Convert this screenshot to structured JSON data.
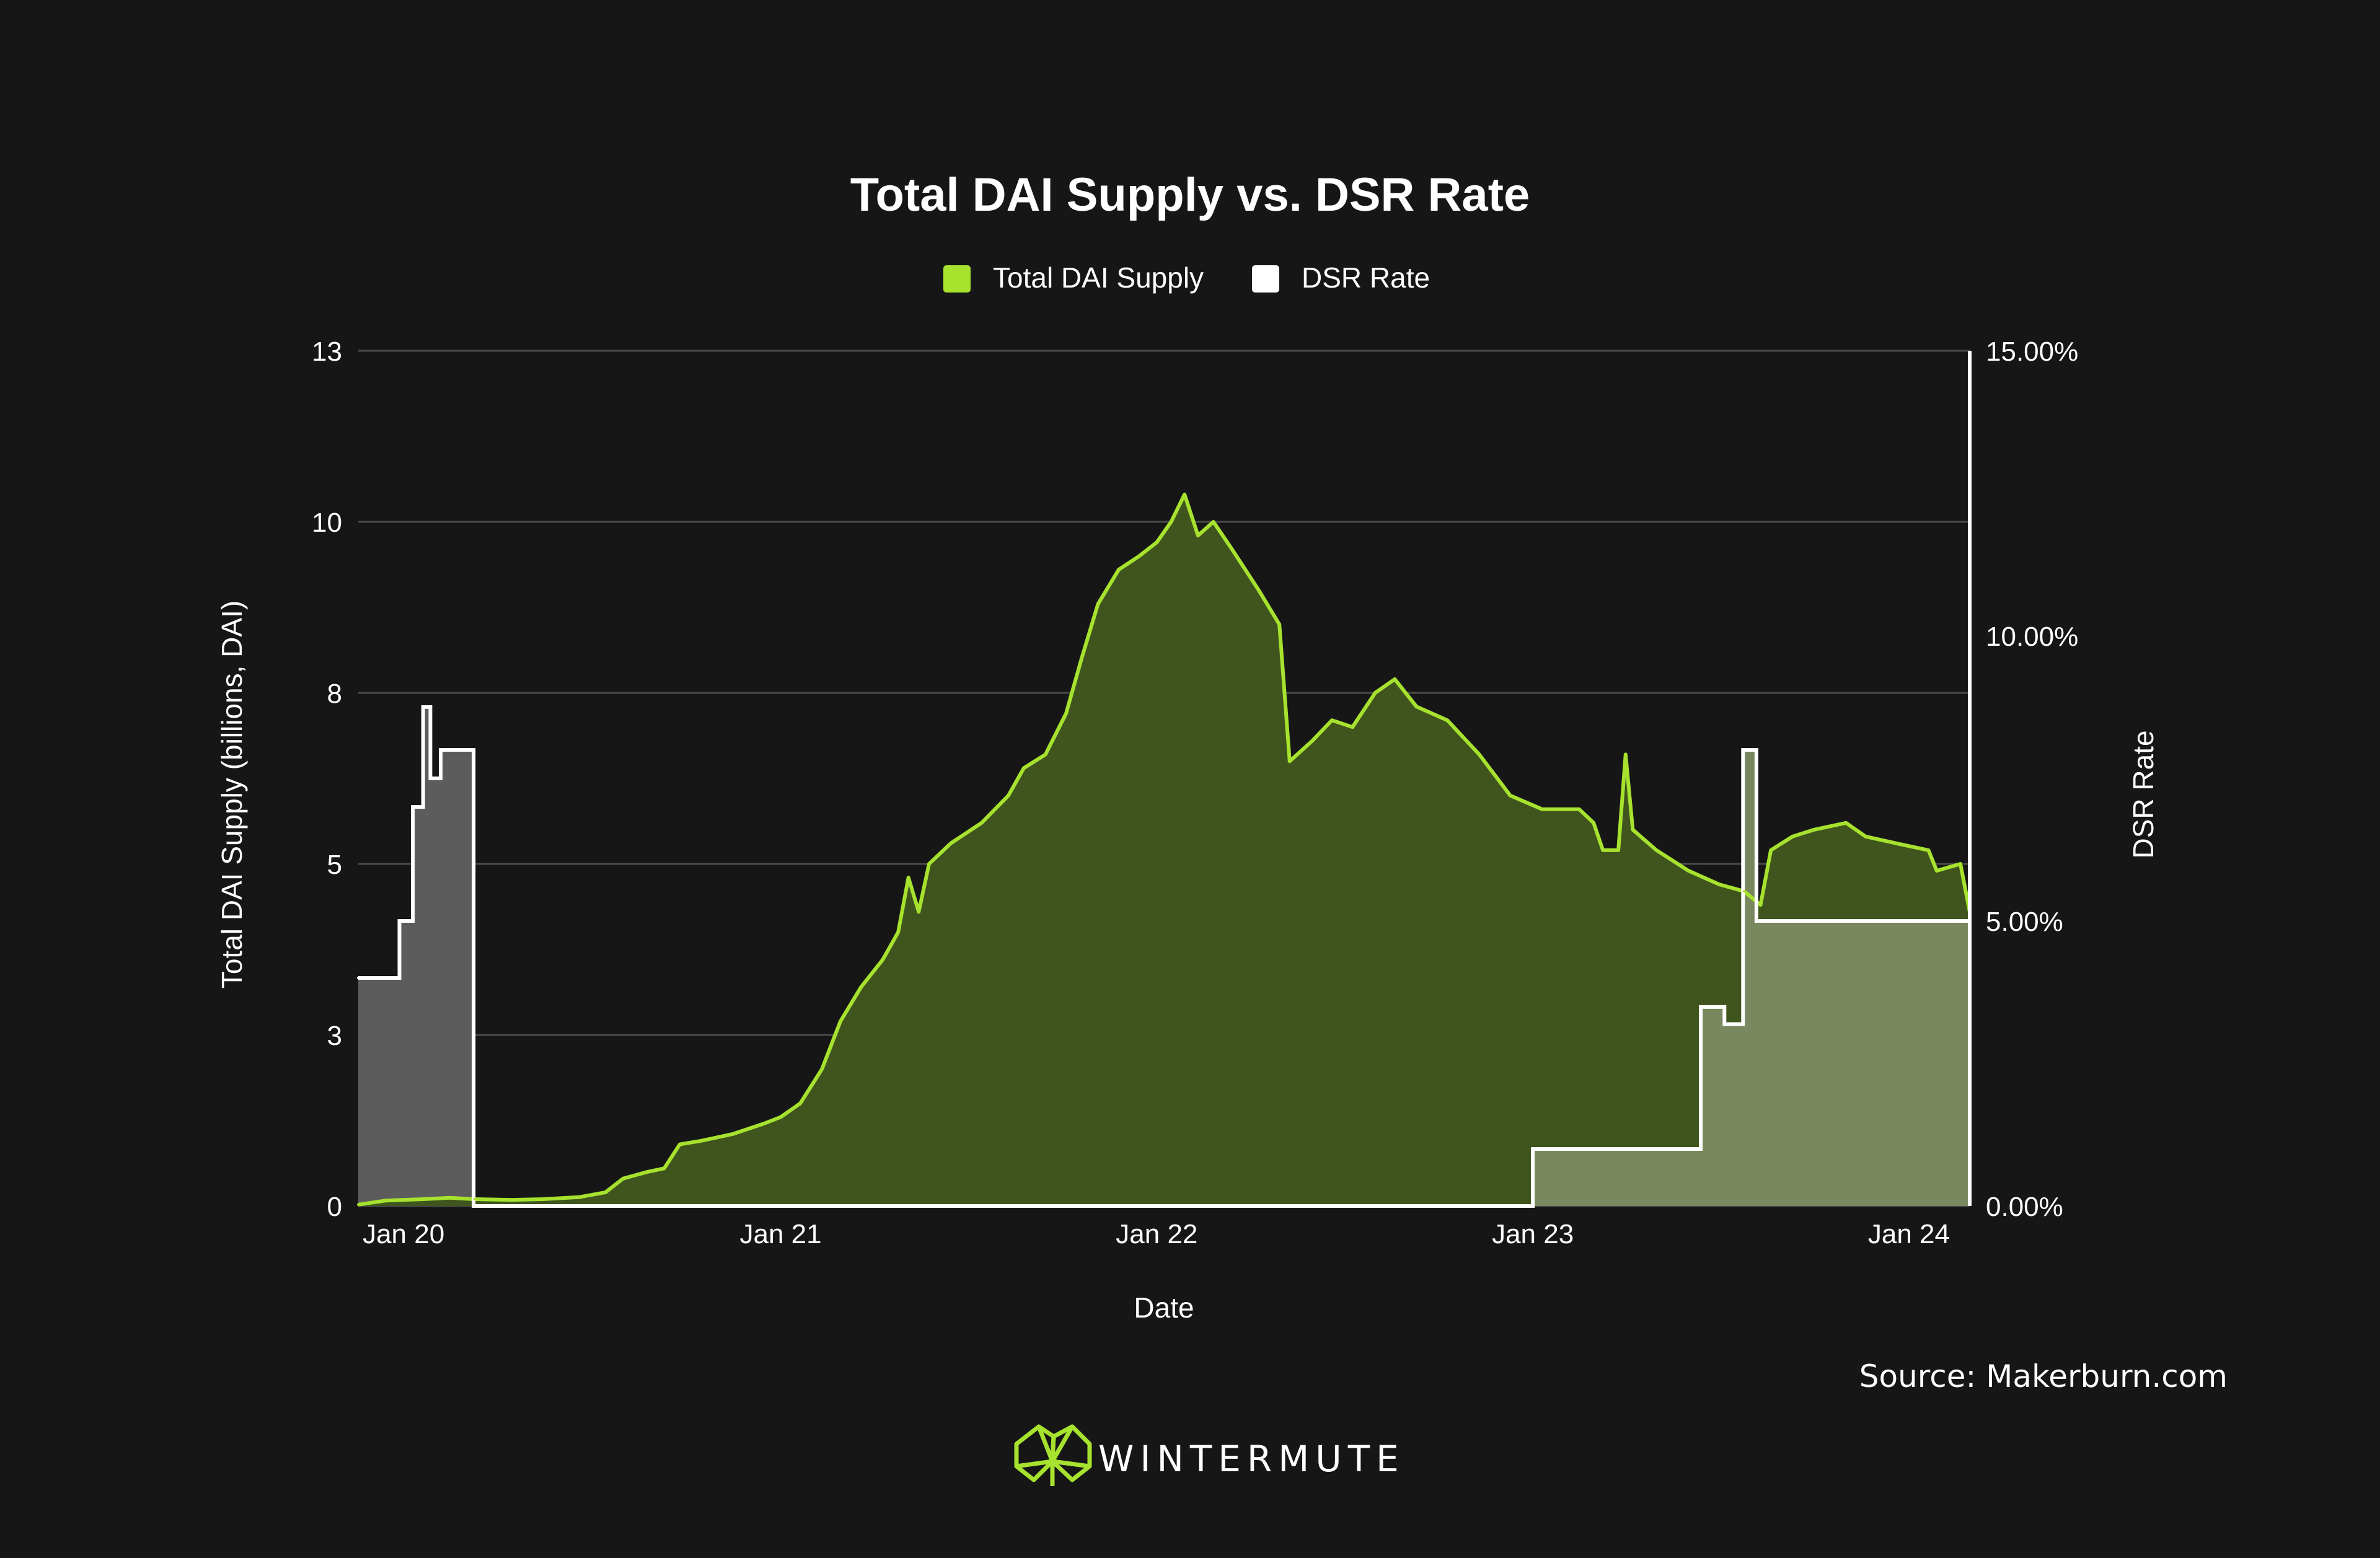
{
  "chart_data": {
    "type": "area",
    "title": "Total DAI Supply vs. DSR Rate",
    "xlabel": "Date",
    "ylabel": "Total DAI Supply (billions, DAI)",
    "y2label": "DSR Rate",
    "x_tick_labels": [
      "Jan 20",
      "Jan 21",
      "Jan 22",
      "Jan 23",
      "Jan 24"
    ],
    "y_tick_labels": [
      "0",
      "3",
      "5",
      "8",
      "10",
      "13"
    ],
    "y2_tick_labels": [
      "0.00%",
      "5.00%",
      "10.00%",
      "15.00%"
    ],
    "xlim": [
      "2019-11-18",
      "2024-02-29"
    ],
    "ylim": [
      0,
      12.5
    ],
    "y2lim": [
      0,
      15
    ],
    "grid": true,
    "legend_position": "top-center",
    "series": [
      {
        "name": "Total DAI Supply",
        "axis": "left",
        "unit": "billions",
        "color": "#a6e22e",
        "fill": "#3f551d",
        "points": [
          [
            "2019-11-18",
            0.02
          ],
          [
            "2019-12-15",
            0.08
          ],
          [
            "2020-01-20",
            0.1
          ],
          [
            "2020-02-15",
            0.12
          ],
          [
            "2020-03-10",
            0.1
          ],
          [
            "2020-04-15",
            0.09
          ],
          [
            "2020-05-15",
            0.1
          ],
          [
            "2020-06-20",
            0.13
          ],
          [
            "2020-07-15",
            0.2
          ],
          [
            "2020-08-01",
            0.4
          ],
          [
            "2020-08-25",
            0.5
          ],
          [
            "2020-09-10",
            0.55
          ],
          [
            "2020-09-25",
            0.9
          ],
          [
            "2020-10-15",
            0.95
          ],
          [
            "2020-11-15",
            1.05
          ],
          [
            "2020-12-15",
            1.2
          ],
          [
            "2021-01-01",
            1.3
          ],
          [
            "2021-01-20",
            1.5
          ],
          [
            "2021-02-10",
            2.0
          ],
          [
            "2021-02-28",
            2.7
          ],
          [
            "2021-03-20",
            3.2
          ],
          [
            "2021-04-10",
            3.6
          ],
          [
            "2021-04-25",
            4.0
          ],
          [
            "2021-05-05",
            4.8
          ],
          [
            "2021-05-15",
            4.3
          ],
          [
            "2021-05-25",
            5.0
          ],
          [
            "2021-06-15",
            5.3
          ],
          [
            "2021-07-15",
            5.6
          ],
          [
            "2021-08-10",
            6.0
          ],
          [
            "2021-08-25",
            6.4
          ],
          [
            "2021-09-15",
            6.6
          ],
          [
            "2021-10-05",
            7.2
          ],
          [
            "2021-10-20",
            8.0
          ],
          [
            "2021-11-05",
            8.8
          ],
          [
            "2021-11-25",
            9.3
          ],
          [
            "2021-12-15",
            9.5
          ],
          [
            "2022-01-01",
            9.7
          ],
          [
            "2022-01-15",
            10.0
          ],
          [
            "2022-01-28",
            10.4
          ],
          [
            "2022-02-10",
            9.8
          ],
          [
            "2022-02-25",
            10.0
          ],
          [
            "2022-03-15",
            9.6
          ],
          [
            "2022-04-10",
            9.0
          ],
          [
            "2022-04-30",
            8.5
          ],
          [
            "2022-05-10",
            6.5
          ],
          [
            "2022-06-01",
            6.8
          ],
          [
            "2022-06-20",
            7.1
          ],
          [
            "2022-07-10",
            7.0
          ],
          [
            "2022-08-01",
            7.5
          ],
          [
            "2022-08-20",
            7.7
          ],
          [
            "2022-09-10",
            7.3
          ],
          [
            "2022-10-10",
            7.1
          ],
          [
            "2022-11-10",
            6.6
          ],
          [
            "2022-12-10",
            6.0
          ],
          [
            "2023-01-10",
            5.8
          ],
          [
            "2023-02-15",
            5.8
          ],
          [
            "2023-03-01",
            5.6
          ],
          [
            "2023-03-10",
            5.2
          ],
          [
            "2023-03-25",
            5.2
          ],
          [
            "2023-04-01",
            6.6
          ],
          [
            "2023-04-08",
            5.5
          ],
          [
            "2023-05-01",
            5.2
          ],
          [
            "2023-06-01",
            4.9
          ],
          [
            "2023-07-01",
            4.7
          ],
          [
            "2023-07-25",
            4.6
          ],
          [
            "2023-08-10",
            4.4
          ],
          [
            "2023-08-20",
            5.2
          ],
          [
            "2023-09-10",
            5.4
          ],
          [
            "2023-10-01",
            5.5
          ],
          [
            "2023-11-01",
            5.6
          ],
          [
            "2023-11-20",
            5.4
          ],
          [
            "2023-12-20",
            5.3
          ],
          [
            "2024-01-20",
            5.2
          ],
          [
            "2024-01-28",
            4.9
          ],
          [
            "2024-02-20",
            5.0
          ],
          [
            "2024-02-29",
            4.3
          ]
        ]
      },
      {
        "name": "DSR Rate",
        "axis": "right",
        "unit": "percent",
        "color": "#ffffff",
        "step": true,
        "points": [
          [
            "2019-11-18",
            4.0
          ],
          [
            "2019-12-28",
            5.0
          ],
          [
            "2020-01-10",
            7.0
          ],
          [
            "2020-01-20",
            8.75
          ],
          [
            "2020-01-27",
            7.5
          ],
          [
            "2020-02-06",
            8.0
          ],
          [
            "2020-03-06",
            8.0
          ],
          [
            "2020-03-09",
            0.0
          ],
          [
            "2022-12-31",
            0.0
          ],
          [
            "2023-01-01",
            1.0
          ],
          [
            "2023-06-12",
            1.0
          ],
          [
            "2023-06-13",
            3.49
          ],
          [
            "2023-07-06",
            3.19
          ],
          [
            "2023-07-23",
            3.19
          ],
          [
            "2023-07-24",
            8.0
          ],
          [
            "2023-08-06",
            5.0
          ],
          [
            "2024-02-29",
            5.0
          ]
        ]
      }
    ]
  },
  "source_text": "Source: Makerburn.com",
  "brand": {
    "name": "WINTERMUTE",
    "logo_icon": "wintermute-logo-icon",
    "logo_color": "#a6e22e"
  },
  "colors": {
    "background": "#161616",
    "grid": "#4a4a4a",
    "supply_line": "#a6e22e",
    "supply_fill": "#3f551d",
    "dsr_line": "#ffffff",
    "dsr_fill_early": "#5c5c5c",
    "dsr_fill_late": "#7b8a60"
  }
}
